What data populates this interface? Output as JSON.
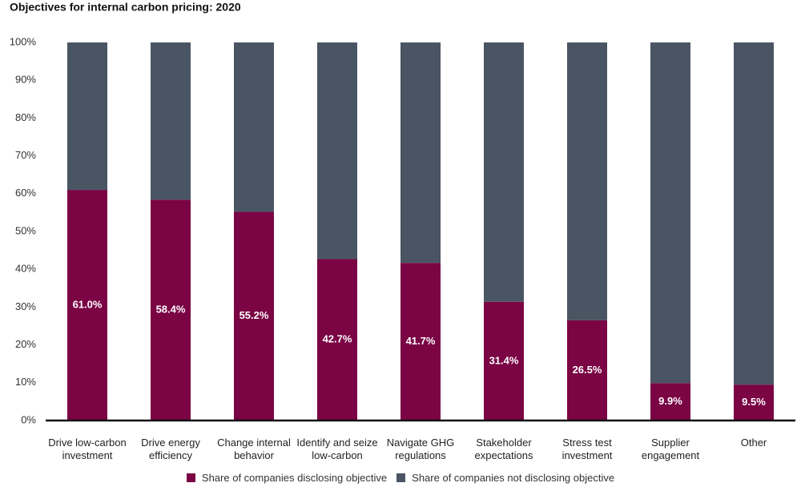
{
  "chart_data": {
    "type": "stacked_bar",
    "title": "Objectives for internal carbon pricing: 2020",
    "categories": [
      "Drive low-carbon investment",
      "Drive energy efficiency",
      "Change internal behavior",
      "Identify and seize low-carbon",
      "Navigate GHG regulations",
      "Stakeholder expectations",
      "Stress test investment",
      "Supplier engagement",
      "Other"
    ],
    "series": [
      {
        "name": "Share of companies disclosing objective",
        "color": "#7a0444",
        "values": [
          61.0,
          58.4,
          55.2,
          42.7,
          41.7,
          31.4,
          26.5,
          9.9,
          9.5
        ],
        "value_labels": [
          "61.0%",
          "58.4%",
          "55.2%",
          "42.7%",
          "41.7%",
          "31.4%",
          "26.5%",
          "9.9%",
          "9.5%"
        ]
      },
      {
        "name": "Share of companies not disclosing objective",
        "color": "#4a5563",
        "values": [
          39.0,
          41.6,
          44.8,
          57.3,
          58.3,
          68.6,
          73.5,
          90.1,
          90.5
        ]
      }
    ],
    "ylim": [
      0,
      100
    ],
    "yticks": [
      {
        "value": 0,
        "label": "0%"
      },
      {
        "value": 10,
        "label": "10%"
      },
      {
        "value": 20,
        "label": "20%"
      },
      {
        "value": 30,
        "label": "30%"
      },
      {
        "value": 40,
        "label": "40%"
      },
      {
        "value": 50,
        "label": "50%"
      },
      {
        "value": 60,
        "label": "60%"
      },
      {
        "value": 70,
        "label": "70%"
      },
      {
        "value": 80,
        "label": "80%"
      },
      {
        "value": 90,
        "label": "90%"
      },
      {
        "value": 100,
        "label": "100%"
      }
    ],
    "grid": false,
    "legend": "bottom"
  }
}
